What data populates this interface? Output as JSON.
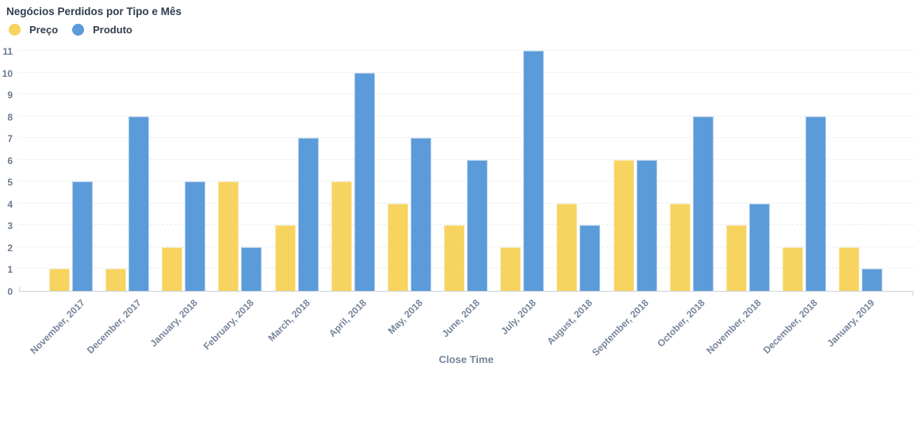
{
  "chart_data": {
    "type": "bar",
    "title": "Negócios Perdidos por Tipo e Mês",
    "categories": [
      "November, 2017",
      "December, 2017",
      "January, 2018",
      "February, 2018",
      "March, 2018",
      "April, 2018",
      "May, 2018",
      "June, 2018",
      "July, 2018",
      "August, 2018",
      "September, 2018",
      "October, 2018",
      "November, 2018",
      "December, 2018",
      "January, 2019"
    ],
    "series": [
      {
        "name": "Preço",
        "color": "#F7D35F",
        "values": [
          1,
          1,
          2,
          5,
          3,
          5,
          4,
          3,
          2,
          4,
          6,
          4,
          3,
          2,
          2
        ]
      },
      {
        "name": "Produto",
        "color": "#5B9BD9",
        "values": [
          5,
          8,
          5,
          2,
          7,
          10,
          7,
          6,
          11,
          3,
          6,
          8,
          4,
          8,
          1
        ]
      }
    ],
    "xlabel": "Close Time",
    "ylabel": "",
    "ylim": [
      0,
      11
    ],
    "yticks": [
      0,
      1,
      2,
      3,
      4,
      5,
      6,
      7,
      8,
      9,
      10,
      11
    ],
    "grid": "horizontal-dashed",
    "legend_position": "top-left"
  },
  "colors": {
    "title_text": "#2F3D4F",
    "legend_text": "#333F4F",
    "axis_text": "#6A7B90",
    "x_axis_text": "#76859B",
    "axis_line": "#C9D3DC",
    "gridline": "#E8EBEE"
  }
}
